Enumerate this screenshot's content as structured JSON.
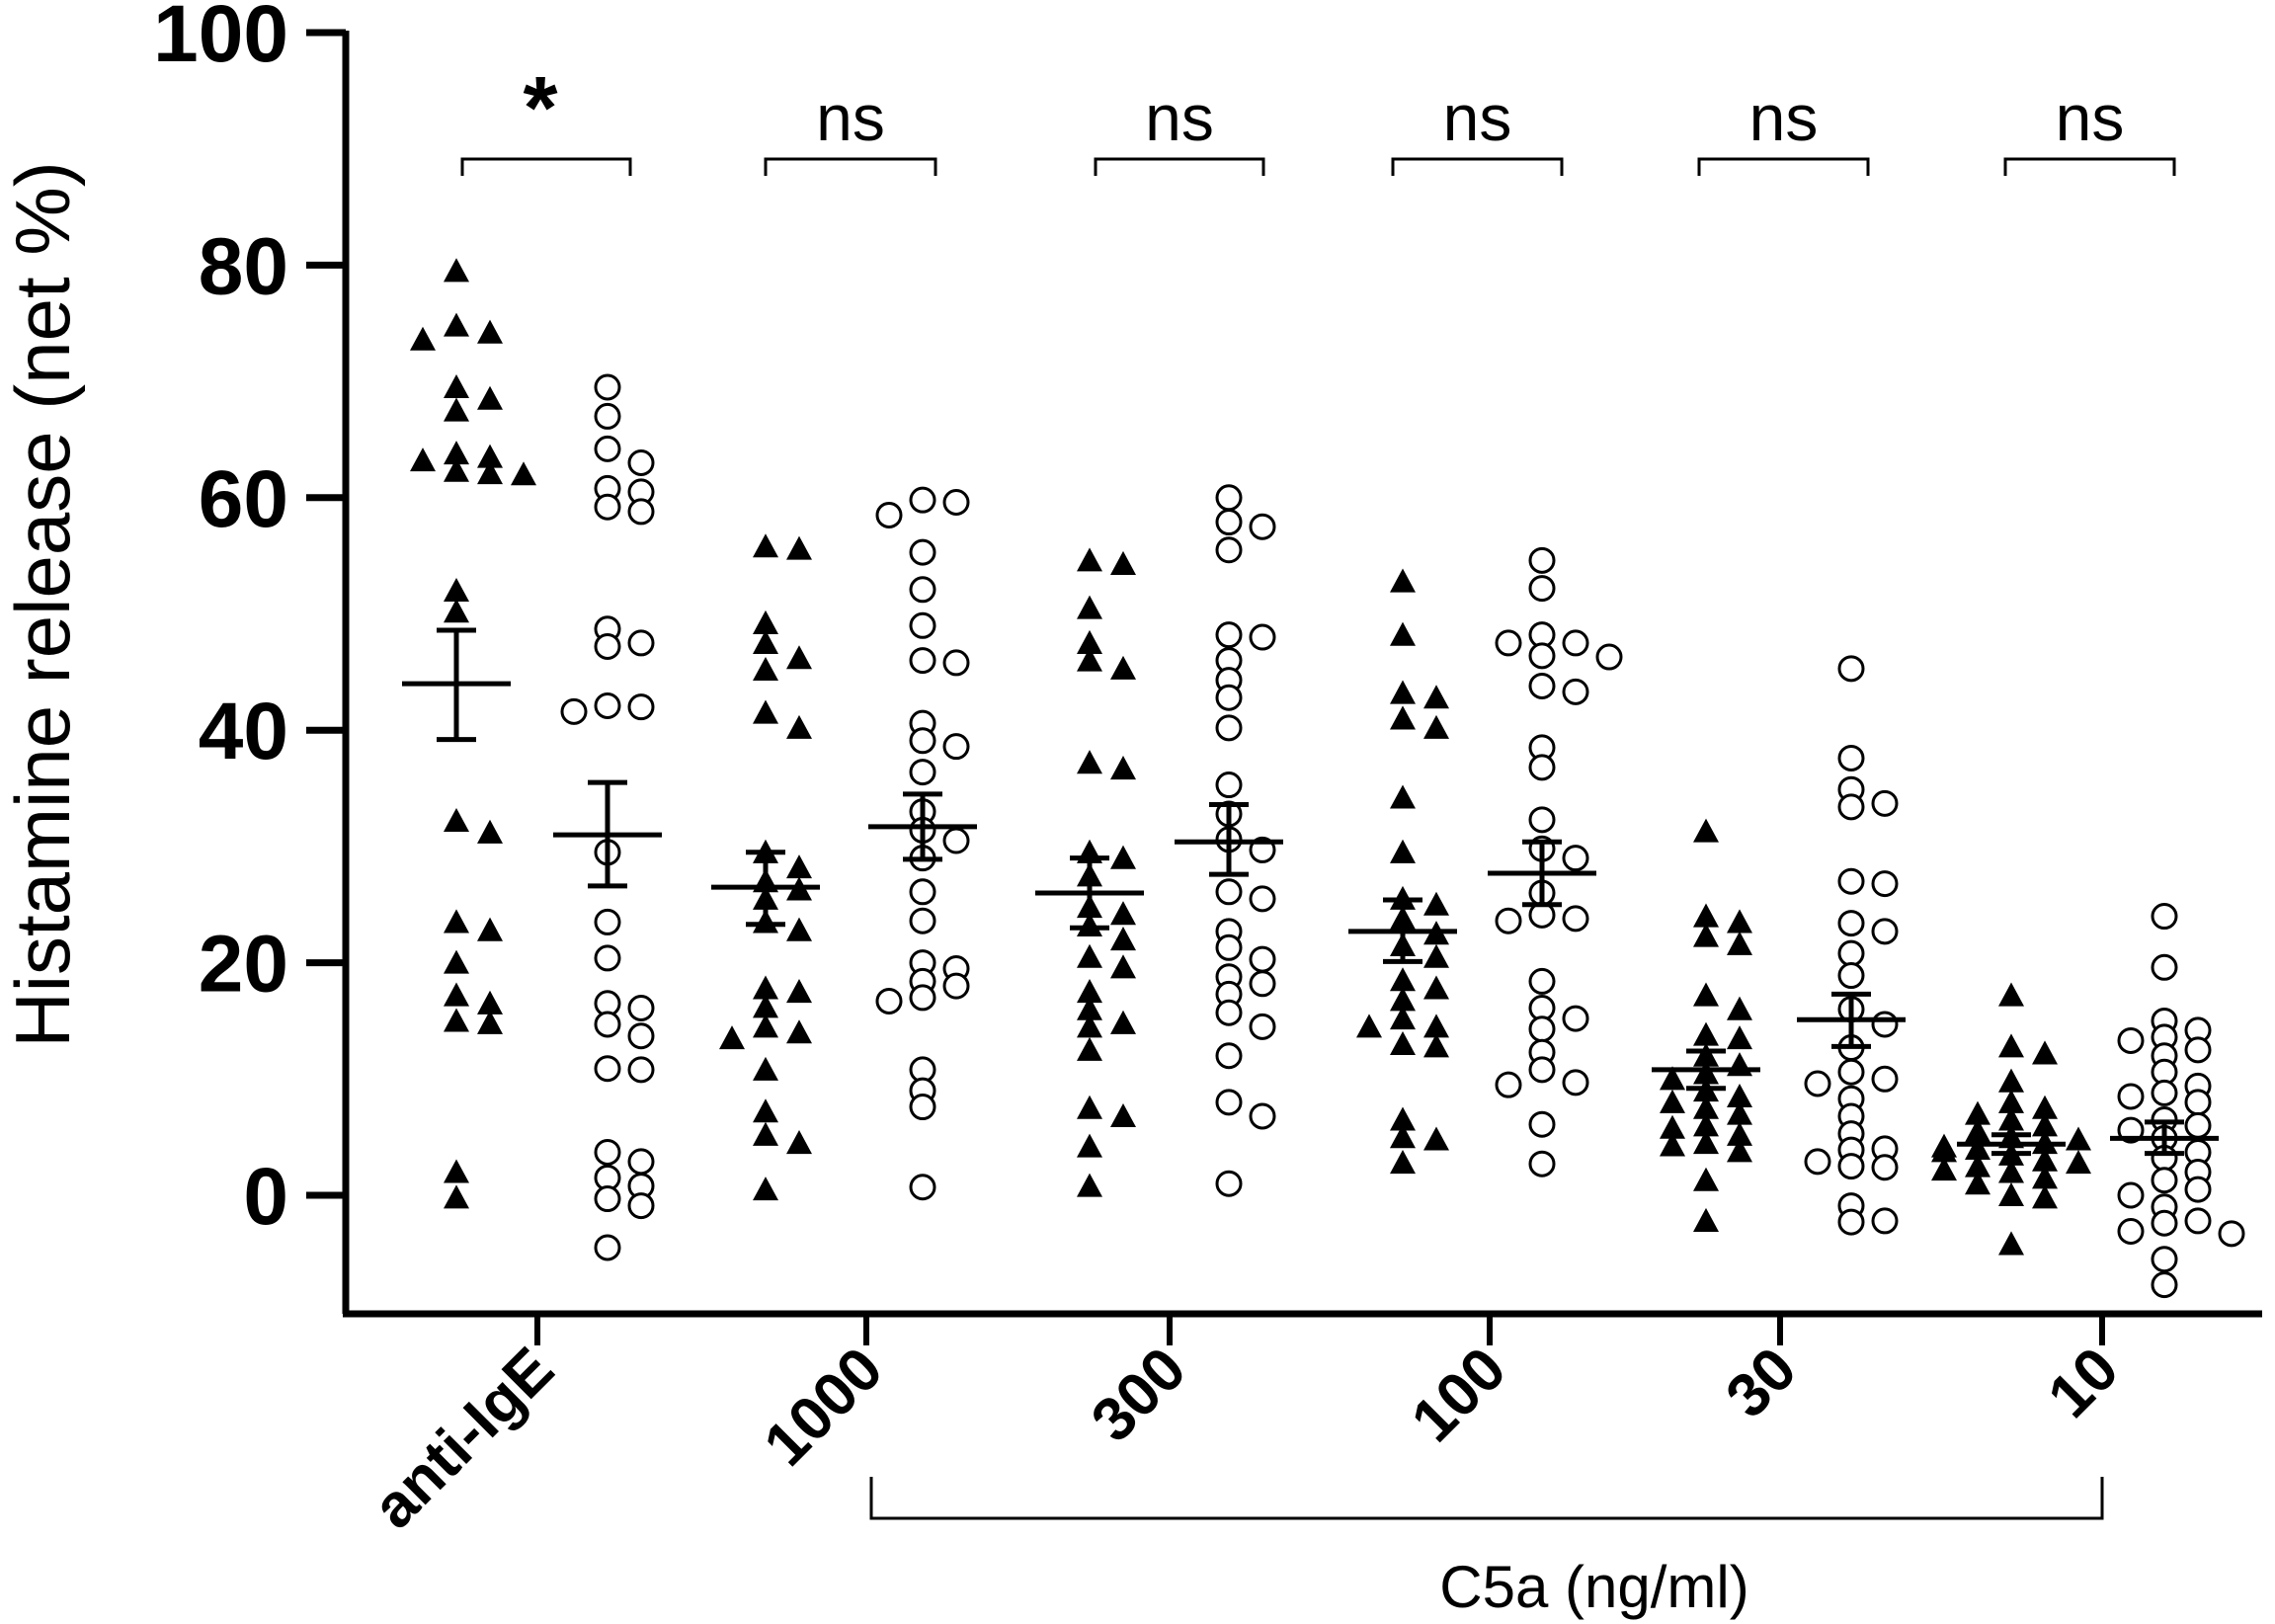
{
  "chart_data": {
    "type": "scatter",
    "subtype": "dot-plot-with-mean-sem",
    "title": "",
    "ylabel": "Histamine release (net %)",
    "xlabel": "",
    "ylim": [
      -10,
      100
    ],
    "yticks": [
      0,
      20,
      40,
      60,
      80,
      100
    ],
    "categories": [
      "anti-IgE",
      "1000",
      "300",
      "100",
      "30",
      "10"
    ],
    "bracket_label": "C5a (ng/ml)",
    "bracket_categories": [
      "1000",
      "300",
      "100",
      "30",
      "10"
    ],
    "series": [
      {
        "name": "filled triangles",
        "marker": "triangle",
        "fill": "#000000"
      },
      {
        "name": "open circles",
        "marker": "circle",
        "fill": "#ffffff"
      }
    ],
    "groups": [
      {
        "category": "anti-IgE",
        "significance": "*",
        "triangle": {
          "mean": 44,
          "sem_low": 39.2,
          "sem_high": 48.6,
          "values": [
            79.5,
            74.8,
            74.2,
            73.6,
            69.5,
            68.5,
            67.5,
            63.8,
            63.5,
            63.2,
            62.3,
            62.1,
            62.0,
            52.0,
            50.2,
            32.2,
            31.2,
            23.5,
            22.8,
            20.0,
            17.2,
            16.5,
            15.0,
            14.8,
            2.0,
            -0.2
          ]
        },
        "circle": {
          "mean": 31,
          "sem_low": 26.6,
          "sem_high": 35.5,
          "values": [
            69.5,
            67.0,
            64.2,
            63.0,
            60.8,
            60.5,
            59.2,
            58.8,
            48.7,
            47.5,
            47.2,
            42.1,
            41.6,
            42.0,
            29.5,
            23.5,
            20.4,
            16.5,
            16.1,
            14.7,
            13.7,
            10.9,
            10.8,
            3.7,
            2.9,
            1.5,
            0.8,
            -0.3,
            -0.9,
            -4.5
          ]
        }
      },
      {
        "category": "1000",
        "significance": "ns",
        "triangle": {
          "mean": 26.5,
          "sem_low": 23.3,
          "sem_high": 29.5,
          "values": [
            55.8,
            55.6,
            49.2,
            47.5,
            46.2,
            45.2,
            41.5,
            40.2,
            29.5,
            28.2,
            27.0,
            26.3,
            25.5,
            23.5,
            22.8,
            17.8,
            17.5,
            16.2,
            14.5,
            14.0,
            13.5,
            10.8,
            7.2,
            5.2,
            4.5,
            0.5
          ]
        },
        "circle": {
          "mean": 31.7,
          "sem_low": 28.9,
          "sem_high": 34.5,
          "values": [
            59.8,
            59.6,
            58.5,
            55.3,
            52.1,
            49.0,
            46.0,
            45.8,
            40.6,
            39.1,
            38.6,
            36.4,
            33.0,
            31.4,
            30.5,
            29.0,
            26.1,
            23.6,
            20.0,
            19.5,
            18.4,
            18.0,
            17.0,
            16.7,
            10.8,
            9.0,
            7.6,
            0.7
          ]
        }
      },
      {
        "category": "300",
        "significance": "ns",
        "triangle": {
          "mean": 26,
          "sem_low": 23.0,
          "sem_high": 29.0,
          "values": [
            54.6,
            54.3,
            50.5,
            47.5,
            46.0,
            45.3,
            37.2,
            36.7,
            29.5,
            29.0,
            27.5,
            24.8,
            24.2,
            23.2,
            22.0,
            20.5,
            19.6,
            17.5,
            16.0,
            14.8,
            14.5,
            12.5,
            7.5,
            6.8,
            4.2,
            0.8
          ]
        },
        "circle": {
          "mean": 30.4,
          "sem_low": 27.6,
          "sem_high": 33.6,
          "values": [
            60.0,
            57.9,
            57.5,
            55.5,
            48.2,
            48.0,
            46.0,
            44.3,
            42.8,
            40.2,
            35.3,
            32.8,
            30.6,
            29.7,
            26.1,
            25.5,
            22.7,
            21.3,
            20.3,
            18.8,
            18.2,
            17.3,
            15.7,
            14.5,
            12.0,
            8.0,
            6.8,
            1.0
          ]
        }
      },
      {
        "category": "100",
        "significance": "ns",
        "triangle": {
          "mean": 22.7,
          "sem_low": 20.1,
          "sem_high": 25.4,
          "values": [
            52.8,
            48.2,
            43.2,
            42.8,
            41.0,
            40.2,
            34.2,
            29.5,
            25.5,
            25.0,
            23.8,
            22.5,
            21.5,
            20.5,
            18.5,
            17.8,
            16.8,
            15.2,
            14.5,
            14.5,
            13.0,
            12.8,
            6.5,
            5.0,
            4.8,
            2.8
          ]
        },
        "circle": {
          "mean": 27.7,
          "sem_low": 25.0,
          "sem_high": 30.4,
          "values": [
            54.6,
            52.2,
            48.2,
            47.5,
            47.5,
            46.4,
            46.3,
            43.8,
            43.3,
            38.5,
            36.8,
            32.3,
            29.8,
            29.0,
            26.0,
            24.1,
            23.8,
            23.6,
            18.4,
            16.1,
            15.2,
            14.3,
            12.3,
            10.8,
            9.7,
            9.5,
            6.1,
            2.7
          ]
        }
      },
      {
        "category": "30",
        "significance": "ns",
        "triangle": {
          "mean": 10.8,
          "sem_low": 9.2,
          "sem_high": 12.4,
          "values": [
            31.3,
            24.0,
            23.5,
            22.3,
            21.6,
            17.2,
            16.0,
            13.8,
            13.5,
            12.0,
            11.2,
            10.5,
            10.0,
            9.0,
            8.5,
            8.0,
            7.5,
            7.0,
            6.0,
            5.8,
            5.2,
            4.5,
            4.3,
            3.8,
            1.3,
            -2.2
          ]
        },
        "circle": {
          "mean": 15.1,
          "sem_low": 12.8,
          "sem_high": 17.3,
          "values": [
            45.3,
            37.6,
            34.9,
            33.7,
            33.4,
            27.0,
            26.8,
            23.4,
            22.7,
            20.8,
            18.9,
            16.0,
            14.7,
            12.7,
            10.6,
            10.0,
            9.6,
            8.3,
            6.8,
            5.3,
            4.0,
            3.9,
            2.9,
            2.5,
            2.4,
            -0.9,
            -2.3,
            -2.2
          ]
        }
      },
      {
        "category": "10",
        "significance": "ns",
        "triangle": {
          "mean": 4.4,
          "sem_low": 3.6,
          "sem_high": 5.2,
          "values": [
            17.2,
            12.8,
            12.2,
            9.8,
            8.0,
            7.5,
            7.0,
            6.5,
            6.0,
            5.5,
            5.0,
            4.8,
            4.5,
            4.2,
            4.0,
            3.8,
            3.5,
            3.0,
            2.8,
            2.5,
            2.2,
            2.0,
            1.5,
            1.0,
            0.0,
            -0.2,
            -4.2
          ]
        },
        "circle": {
          "mean": 4.9,
          "sem_low": 3.6,
          "sem_high": 6.3,
          "values": [
            24.0,
            19.6,
            15.0,
            14.2,
            13.6,
            13.3,
            12.5,
            12.0,
            10.6,
            9.4,
            8.8,
            8.5,
            8.0,
            6.5,
            6.0,
            5.6,
            4.9,
            3.7,
            3.2,
            2.0,
            1.3,
            0.5,
            0.0,
            -1.0,
            -2.2,
            -2.4,
            -3.1,
            -3.3,
            -5.5,
            -7.7
          ]
        }
      }
    ]
  }
}
